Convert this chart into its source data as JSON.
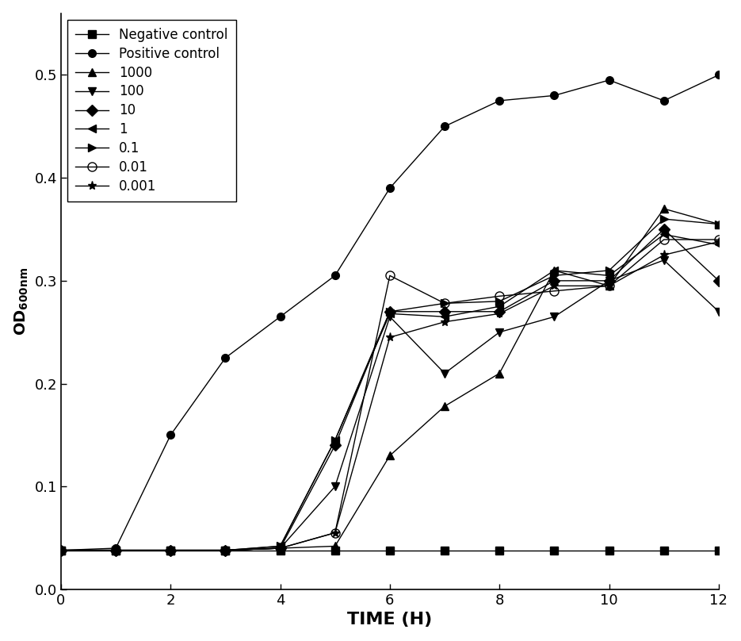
{
  "time": [
    0,
    1,
    2,
    3,
    4,
    5,
    6,
    7,
    8,
    9,
    10,
    11,
    12
  ],
  "series": [
    {
      "label": "Negative control",
      "values": [
        0.038,
        0.038,
        0.038,
        0.038,
        0.038,
        0.038,
        0.038,
        0.038,
        0.038,
        0.038,
        0.038,
        0.038,
        0.038
      ],
      "marker": "s",
      "fillstyle": "full",
      "markersize": 7
    },
    {
      "label": "Positive control",
      "values": [
        0.038,
        0.04,
        0.15,
        0.225,
        0.265,
        0.305,
        0.39,
        0.45,
        0.475,
        0.48,
        0.495,
        0.475,
        0.5
      ],
      "marker": "o",
      "fillstyle": "full",
      "markersize": 7
    },
    {
      "label": "1000",
      "values": [
        0.038,
        0.038,
        0.038,
        0.038,
        0.04,
        0.042,
        0.13,
        0.178,
        0.21,
        0.31,
        0.295,
        0.37,
        0.355
      ],
      "marker": "^",
      "fillstyle": "full",
      "markersize": 7
    },
    {
      "label": "100",
      "values": [
        0.038,
        0.038,
        0.038,
        0.038,
        0.04,
        0.1,
        0.265,
        0.21,
        0.25,
        0.265,
        0.3,
        0.32,
        0.27
      ],
      "marker": "v",
      "fillstyle": "full",
      "markersize": 7
    },
    {
      "label": "10",
      "values": [
        0.038,
        0.038,
        0.038,
        0.038,
        0.04,
        0.14,
        0.27,
        0.27,
        0.27,
        0.3,
        0.3,
        0.35,
        0.3
      ],
      "marker": "D",
      "fillstyle": "full",
      "markersize": 7
    },
    {
      "label": "1",
      "values": [
        0.038,
        0.038,
        0.038,
        0.038,
        0.042,
        0.145,
        0.268,
        0.265,
        0.275,
        0.31,
        0.305,
        0.345,
        0.335
      ],
      "marker": "<",
      "fillstyle": "full",
      "markersize": 7
    },
    {
      "label": "0.1",
      "values": [
        0.038,
        0.038,
        0.038,
        0.038,
        0.042,
        0.145,
        0.27,
        0.278,
        0.28,
        0.305,
        0.31,
        0.36,
        0.355
      ],
      "marker": ">",
      "fillstyle": "full",
      "markersize": 7
    },
    {
      "label": "0.01",
      "values": [
        0.038,
        0.038,
        0.038,
        0.038,
        0.04,
        0.055,
        0.305,
        0.278,
        0.285,
        0.29,
        0.295,
        0.34,
        0.34
      ],
      "marker": "o",
      "fillstyle": "none",
      "markersize": 8
    },
    {
      "label": "0.001",
      "values": [
        0.038,
        0.038,
        0.038,
        0.038,
        0.04,
        0.055,
        0.245,
        0.26,
        0.268,
        0.295,
        0.295,
        0.325,
        0.338
      ],
      "marker": "*",
      "fillstyle": "full",
      "markersize": 8
    }
  ],
  "xlabel": "TIME (H)",
  "ylabel": "OD",
  "ylabel_sub": "600nm",
  "xlim": [
    0,
    12
  ],
  "ylim": [
    0.0,
    0.56
  ],
  "yticks": [
    0.0,
    0.1,
    0.2,
    0.3,
    0.4,
    0.5
  ],
  "xticks": [
    0,
    2,
    4,
    6,
    8,
    10,
    12
  ],
  "linewidth": 1.0,
  "color": "black",
  "legend_loc": "upper left",
  "background_color": "#ffffff",
  "legend_fontsize": 12,
  "tick_labelsize": 13,
  "xlabel_fontsize": 16,
  "ylabel_fontsize": 14
}
